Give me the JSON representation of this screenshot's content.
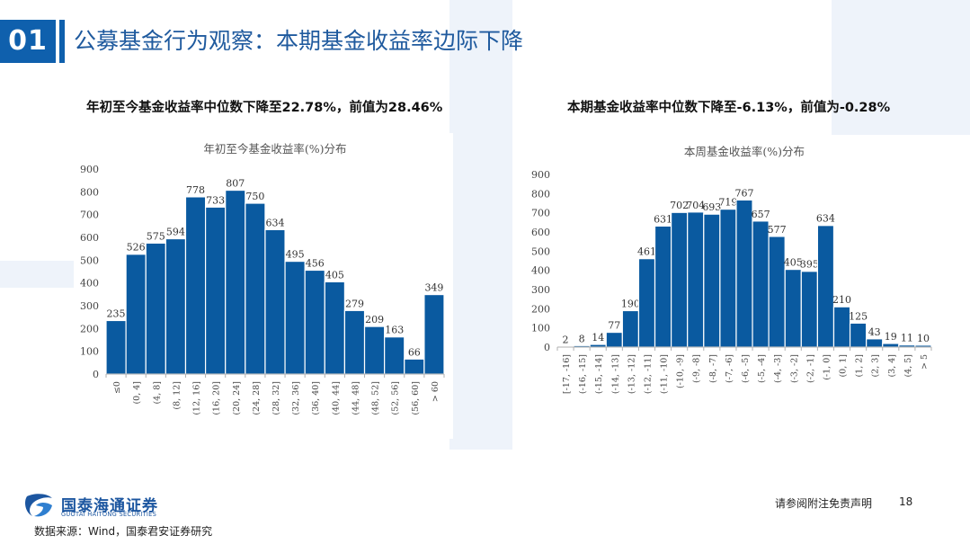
{
  "header": {
    "section_number": "01",
    "title": "公募基金行为观察：本期基金收益率边际下降"
  },
  "subtitles": {
    "left": "年初至今基金收益率中位数下降至22.78%，前值为28.46%",
    "right": "本期基金收益率中位数下降至-6.13%，前值为-0.28%"
  },
  "footer": {
    "logo_cn": "国泰海通证券",
    "logo_en": "GUOTAI HAITONG SECURITIES",
    "source": "数据来源：Wind，国泰君安证券研究",
    "disclaimer": "请参阅附注免责声明",
    "page_number": "18"
  },
  "colors": {
    "bar": "#0a5aa0",
    "accent": "#0f60ad"
  },
  "chart_data": [
    {
      "type": "bar",
      "title": "年初至今基金收益率(%)分布",
      "xlabel": "",
      "ylabel": "",
      "ylim": [
        0,
        900
      ],
      "yticks": [
        0,
        100,
        200,
        300,
        400,
        500,
        600,
        700,
        800,
        900
      ],
      "grid": false,
      "categories": [
        "≤0",
        "(0, 4]",
        "(4, 8]",
        "(8, 12]",
        "(12, 16]",
        "(16, 20]",
        "(20, 24]",
        "(24, 28]",
        "(28, 32]",
        "(32, 36]",
        "(36, 40]",
        "(40, 44]",
        "(44, 48]",
        "(48, 52]",
        "(52, 56]",
        "(56, 60]",
        "> 60"
      ],
      "values": [
        235,
        526,
        575,
        594,
        778,
        733,
        807,
        750,
        634,
        495,
        456,
        405,
        279,
        209,
        163,
        66,
        349
      ]
    },
    {
      "type": "bar",
      "title": "本周基金收益率(%)分布",
      "xlabel": "",
      "ylabel": "",
      "ylim": [
        0,
        900
      ],
      "yticks": [
        0,
        100,
        200,
        300,
        400,
        500,
        600,
        700,
        800,
        900
      ],
      "grid": false,
      "categories": [
        "[-17, -16]",
        "(-16, -15]",
        "(-15, -14]",
        "(-14, -13]",
        "(-13, -12]",
        "(-12, -11]",
        "(-11, -10]",
        "(-10, -9]",
        "(-9, -8]",
        "(-8, -7]",
        "(-7, -6]",
        "(-6, -5]",
        "(-5, -4]",
        "(-4, -3]",
        "(-3, -2]",
        "(-2, -1]",
        "(-1, 0]",
        "(0, 1]",
        "(1, 2]",
        "(2, 3]",
        "(3, 4]",
        "(4, 5]",
        "> 5"
      ],
      "values": [
        2,
        8,
        14,
        77,
        190,
        461,
        631,
        702,
        704,
        693,
        719,
        767,
        657,
        577,
        405,
        395,
        634,
        210,
        125,
        43,
        19,
        11,
        10
      ]
    }
  ]
}
